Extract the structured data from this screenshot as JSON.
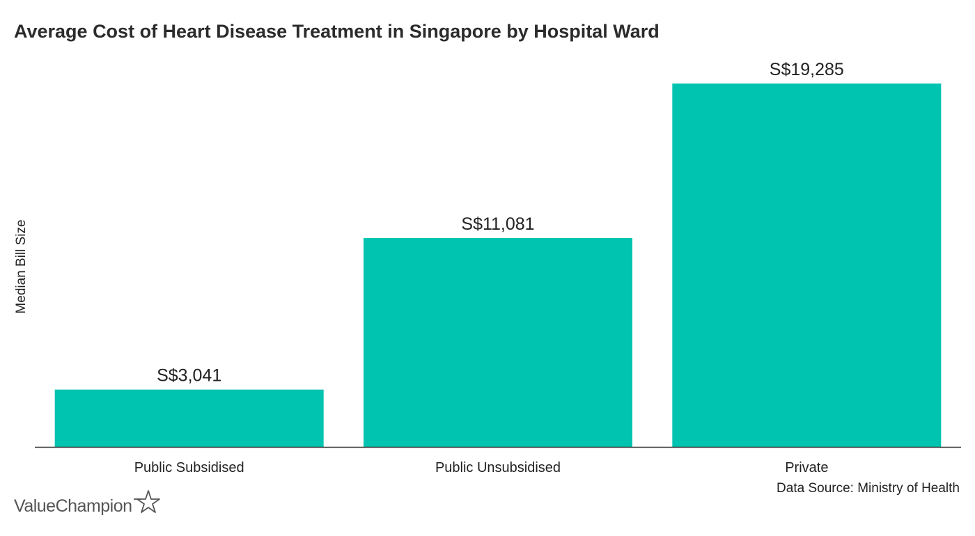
{
  "title": "Average Cost of Heart Disease Treatment in Singapore by Hospital Ward",
  "source": "Data Source: Ministry of Health",
  "brand": {
    "name": "ValueChampion",
    "icon": "star-outline-icon"
  },
  "colors": {
    "bar": "#00c3b0",
    "axis": "#333333",
    "text": "#222222"
  },
  "chart_data": {
    "type": "bar",
    "categories": [
      "Public Subsidised",
      "Public Unsubsidised",
      "Private"
    ],
    "values": [
      3041,
      11081,
      19285
    ],
    "value_labels": [
      "S$3,041",
      "S$11,081",
      "S$19,285"
    ],
    "ylabel": "Median Bill Size",
    "xlabel": "",
    "ylim": [
      0,
      21500
    ],
    "grid": false,
    "legend": "none"
  }
}
